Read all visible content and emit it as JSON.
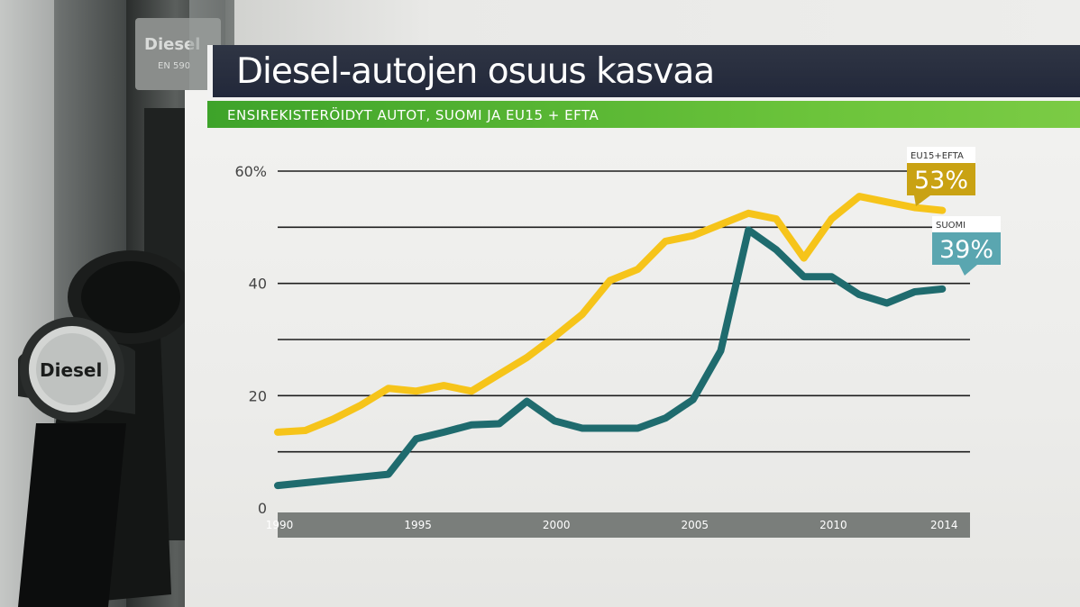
{
  "title": "Diesel-autojen osuus kasvaa",
  "subtitle": "ENSIREKISTERÖIDYT AUTOT, SUOMI JA EU15 + EFTA",
  "photo": {
    "pump_label": "Diesel",
    "pump_top_label": "Diesel",
    "pump_top_sublabel": "EN 590"
  },
  "colors": {
    "eu": "#f6c41a",
    "suomi": "#1f6b6e",
    "eu_callout": "#c9a213",
    "suomi_callout": "#5aa6b0"
  },
  "callouts": {
    "eu": {
      "label": "EU15+EFTA",
      "value": "53%"
    },
    "suomi": {
      "label": "SUOMI",
      "value": "39%"
    }
  },
  "chart_data": {
    "type": "line",
    "ylim": [
      0,
      60
    ],
    "yticks": [
      0,
      20,
      40,
      60
    ],
    "ytick_labels": [
      "0",
      "20",
      "40",
      "60%"
    ],
    "xlim": [
      1990,
      2015
    ],
    "xticks": [
      1990,
      1995,
      2000,
      2005,
      2010,
      2014
    ],
    "xtick_labels": [
      "1990",
      "1995",
      "2000",
      "2005",
      "2010",
      "2014"
    ],
    "grid": true,
    "series": [
      {
        "name": "EU15+EFTA",
        "x": [
          1990,
          1991,
          1992,
          1993,
          1994,
          1995,
          1996,
          1997,
          1998,
          1999,
          2000,
          2001,
          2002,
          2003,
          2004,
          2005,
          2006,
          2007,
          2008,
          2009,
          2010,
          2011,
          2012,
          2013,
          2014
        ],
        "values": [
          13.5,
          13.8,
          15.8,
          18.3,
          21.3,
          20.8,
          21.8,
          20.8,
          23.8,
          26.8,
          30.5,
          34.5,
          40.5,
          42.5,
          47.5,
          48.5,
          50.5,
          52.5,
          51.5,
          44.5,
          51.5,
          55.5,
          54.5,
          53.5,
          53
        ]
      },
      {
        "name": "SUOMI",
        "x": [
          1990,
          1991,
          1992,
          1993,
          1994,
          1995,
          1996,
          1997,
          1998,
          1999,
          2000,
          2001,
          2002,
          2003,
          2004,
          2005,
          2006,
          2007,
          2008,
          2009,
          2010,
          2011,
          2012,
          2013,
          2014
        ],
        "values": [
          4,
          4.5,
          5,
          5.5,
          6,
          12.3,
          13.5,
          14.8,
          15,
          19,
          15.5,
          14.2,
          14.2,
          14.2,
          16,
          19.3,
          28,
          49.5,
          46,
          41.2,
          41.2,
          38,
          36.5,
          38.5,
          39
        ]
      }
    ]
  }
}
